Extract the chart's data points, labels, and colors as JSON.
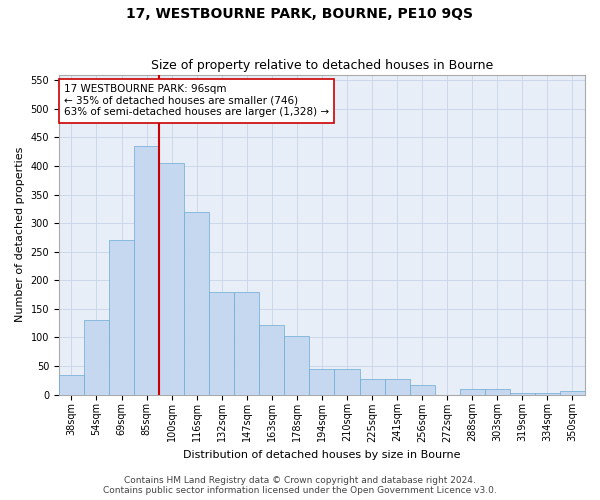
{
  "title": "17, WESTBOURNE PARK, BOURNE, PE10 9QS",
  "subtitle": "Size of property relative to detached houses in Bourne",
  "xlabel": "Distribution of detached houses by size in Bourne",
  "ylabel": "Number of detached properties",
  "categories": [
    "38sqm",
    "54sqm",
    "69sqm",
    "85sqm",
    "100sqm",
    "116sqm",
    "132sqm",
    "147sqm",
    "163sqm",
    "178sqm",
    "194sqm",
    "210sqm",
    "225sqm",
    "241sqm",
    "256sqm",
    "272sqm",
    "288sqm",
    "303sqm",
    "319sqm",
    "334sqm",
    "350sqm"
  ],
  "values": [
    35,
    130,
    270,
    435,
    405,
    320,
    180,
    180,
    122,
    103,
    45,
    45,
    28,
    28,
    17,
    0,
    9,
    9,
    3,
    3,
    6
  ],
  "bar_color": "#c5d8f0",
  "bar_edge_color": "#6aaad4",
  "vline_color": "#cc0000",
  "vline_index": 3.5,
  "annotation_line1": "17 WESTBOURNE PARK: 96sqm",
  "annotation_line2": "← 35% of detached houses are smaller (746)",
  "annotation_line3": "63% of semi-detached houses are larger (1,328) →",
  "annotation_box_color": "#ffffff",
  "annotation_box_edge": "#cc0000",
  "ylim": [
    0,
    560
  ],
  "yticks": [
    0,
    50,
    100,
    150,
    200,
    250,
    300,
    350,
    400,
    450,
    500,
    550
  ],
  "grid_color": "#c8d4e8",
  "bg_color": "#e8eef8",
  "footer_line1": "Contains HM Land Registry data © Crown copyright and database right 2024.",
  "footer_line2": "Contains public sector information licensed under the Open Government Licence v3.0.",
  "title_fontsize": 10,
  "subtitle_fontsize": 9,
  "axis_label_fontsize": 8,
  "tick_fontsize": 7,
  "annotation_fontsize": 7.5,
  "footer_fontsize": 6.5
}
